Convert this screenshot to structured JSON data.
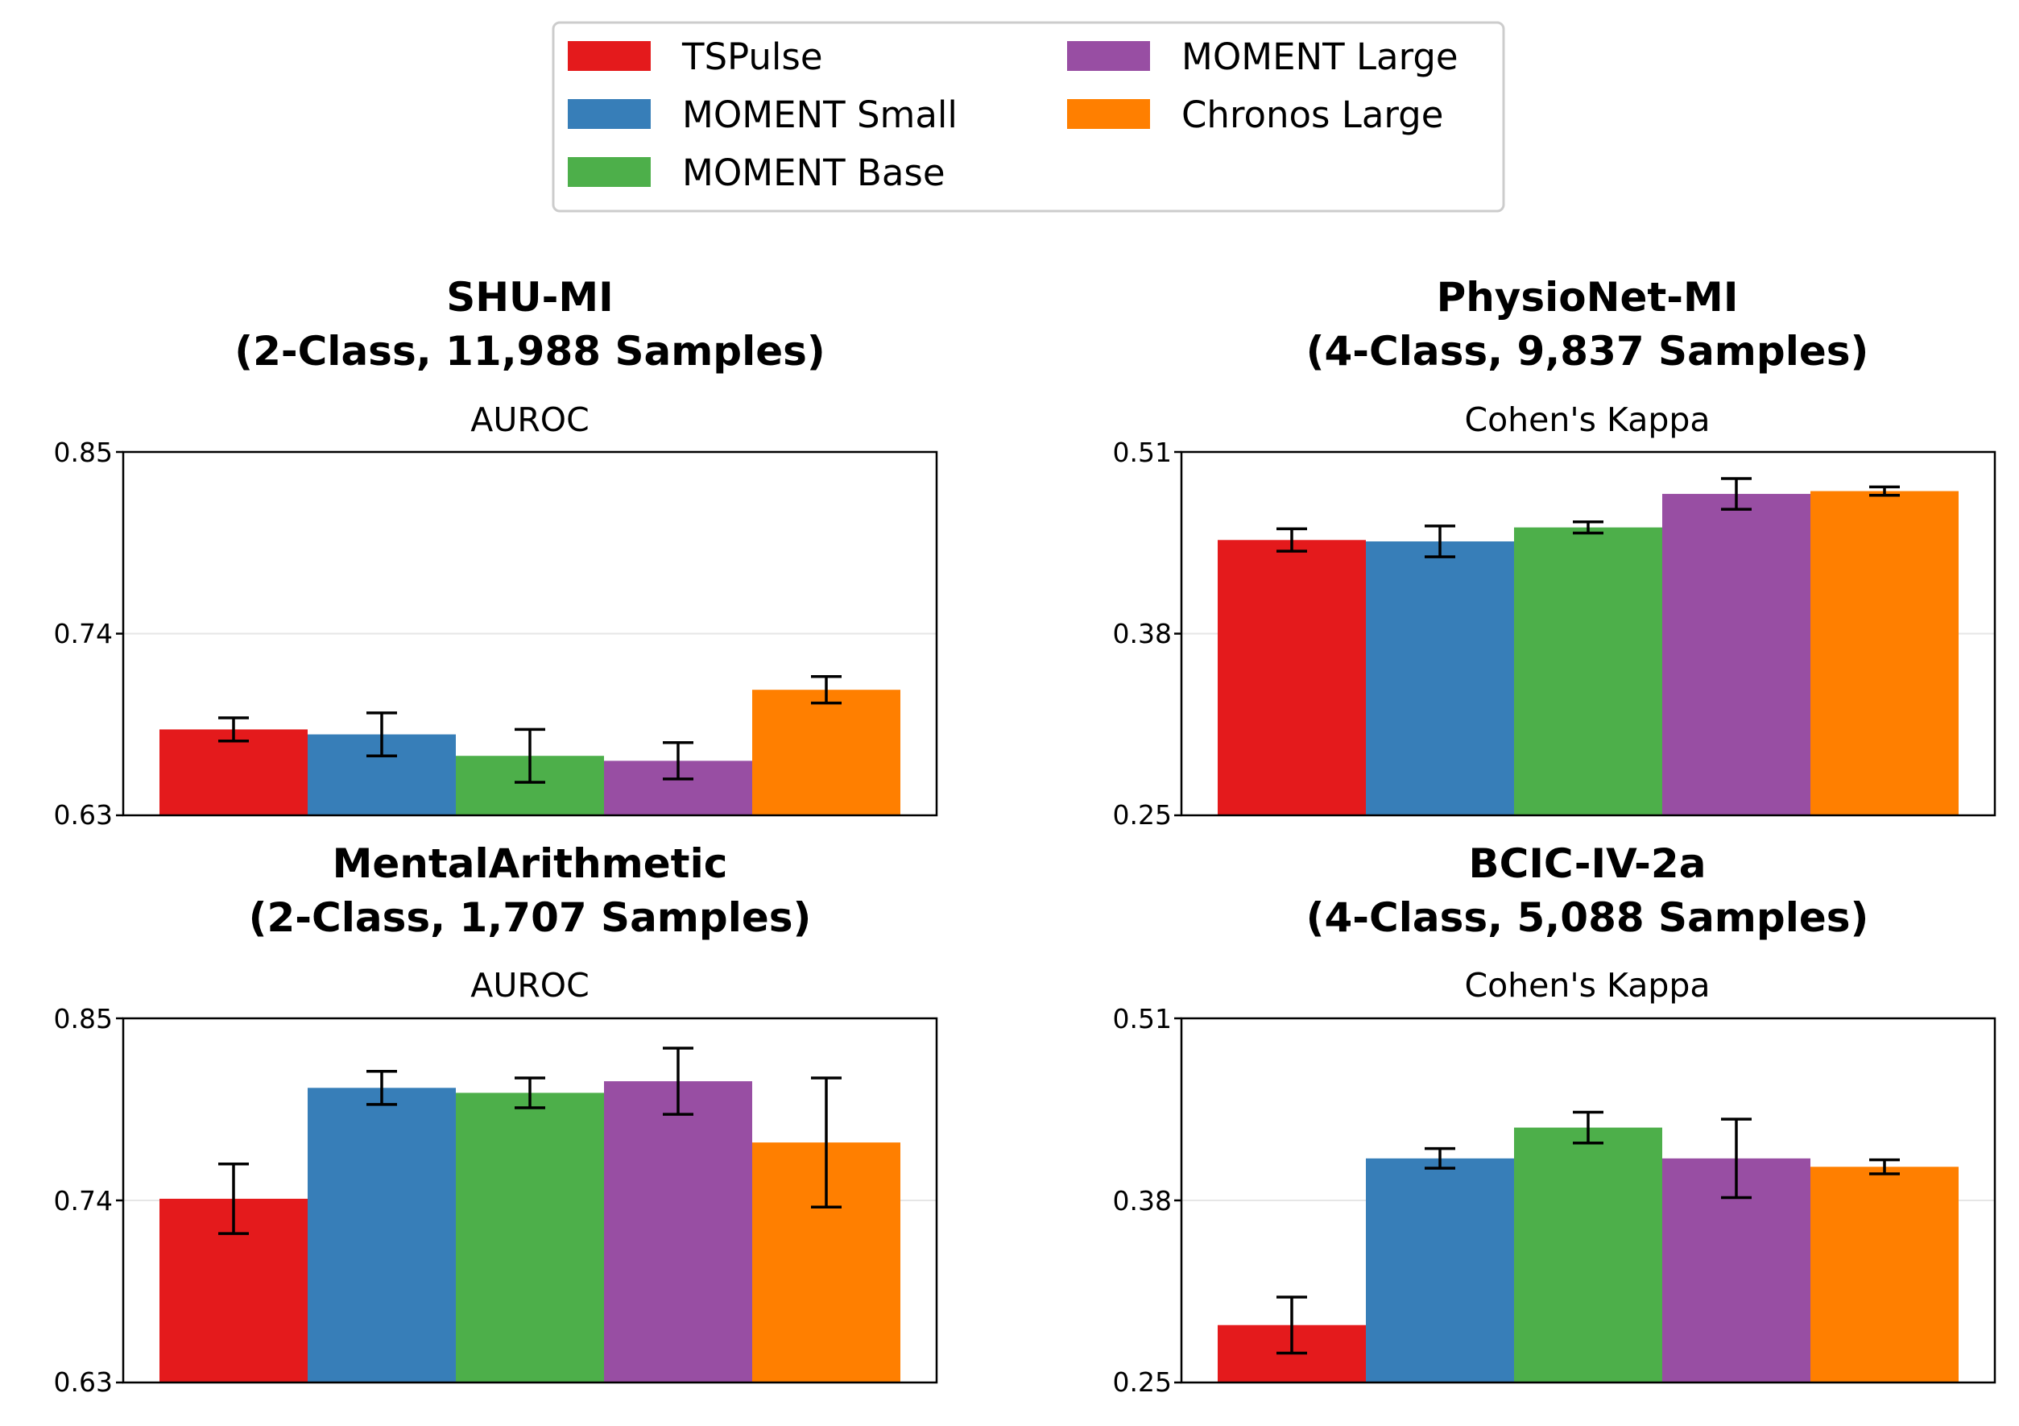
{
  "legend": {
    "placement": "top-center",
    "entries": [
      {
        "name": "TSPulse",
        "color": "#e41a1c"
      },
      {
        "name": "MOMENT Small",
        "color": "#377eb8"
      },
      {
        "name": "MOMENT Base",
        "color": "#4daf4a"
      },
      {
        "name": "MOMENT Large",
        "color": "#984ea3"
      },
      {
        "name": "Chronos Large",
        "color": "#ff7f00"
      }
    ]
  },
  "chart_data": [
    {
      "type": "bar",
      "title_line1": "SHU-MI",
      "title_line2": "(2-Class, 11,988 Samples)",
      "ylabel": "AUROC",
      "ylim": [
        0.63,
        0.85
      ],
      "yticks": [
        "0.63",
        "0.74",
        "0.85"
      ],
      "grid": true,
      "series": [
        {
          "name": "TSPulse",
          "value": 0.682,
          "err": 0.007
        },
        {
          "name": "MOMENT Small",
          "value": 0.679,
          "err": 0.013
        },
        {
          "name": "MOMENT Base",
          "value": 0.666,
          "err": 0.016
        },
        {
          "name": "MOMENT Large",
          "value": 0.663,
          "err": 0.011
        },
        {
          "name": "Chronos Large",
          "value": 0.706,
          "err": 0.008
        }
      ]
    },
    {
      "type": "bar",
      "title_line1": "PhysioNet-MI",
      "title_line2": "(4-Class, 9,837 Samples)",
      "ylabel": "Cohen's Kappa",
      "ylim": [
        0.25,
        0.51
      ],
      "yticks": [
        "0.25",
        "0.38",
        "0.51"
      ],
      "grid": true,
      "series": [
        {
          "name": "TSPulse",
          "value": 0.447,
          "err": 0.008
        },
        {
          "name": "MOMENT Small",
          "value": 0.446,
          "err": 0.011
        },
        {
          "name": "MOMENT Base",
          "value": 0.456,
          "err": 0.004
        },
        {
          "name": "MOMENT Large",
          "value": 0.48,
          "err": 0.011
        },
        {
          "name": "Chronos Large",
          "value": 0.482,
          "err": 0.003
        }
      ]
    },
    {
      "type": "bar",
      "title_line1": "MentalArithmetic",
      "title_line2": "(2-Class, 1,707 Samples)",
      "ylabel": "AUROC",
      "ylim": [
        0.63,
        0.85
      ],
      "yticks": [
        "0.63",
        "0.74",
        "0.85"
      ],
      "grid": true,
      "series": [
        {
          "name": "TSPulse",
          "value": 0.741,
          "err": 0.021
        },
        {
          "name": "MOMENT Small",
          "value": 0.808,
          "err": 0.01
        },
        {
          "name": "MOMENT Base",
          "value": 0.805,
          "err": 0.009
        },
        {
          "name": "MOMENT Large",
          "value": 0.812,
          "err": 0.02
        },
        {
          "name": "Chronos Large",
          "value": 0.775,
          "err": 0.039
        }
      ]
    },
    {
      "type": "bar",
      "title_line1": "BCIC-IV-2a",
      "title_line2": "(4-Class, 5,088 Samples)",
      "ylabel": "Cohen's Kappa",
      "ylim": [
        0.25,
        0.51
      ],
      "yticks": [
        "0.25",
        "0.38",
        "0.51"
      ],
      "grid": true,
      "series": [
        {
          "name": "TSPulse",
          "value": 0.291,
          "err": 0.02
        },
        {
          "name": "MOMENT Small",
          "value": 0.41,
          "err": 0.007
        },
        {
          "name": "MOMENT Base",
          "value": 0.432,
          "err": 0.011
        },
        {
          "name": "MOMENT Large",
          "value": 0.41,
          "err": 0.028
        },
        {
          "name": "Chronos Large",
          "value": 0.404,
          "err": 0.005
        }
      ]
    }
  ]
}
